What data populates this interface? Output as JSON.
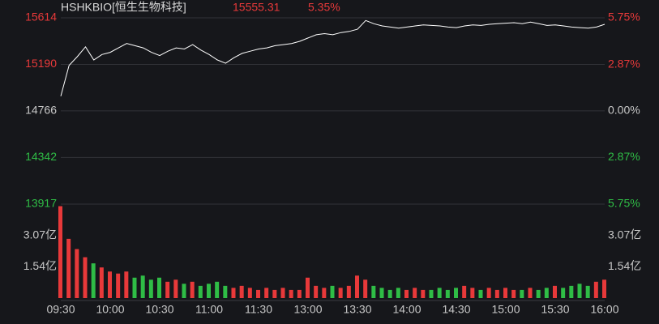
{
  "header": {
    "symbol": "HSHKBIO[恒生生物科技]",
    "price": "15555.31",
    "change": "5.35%"
  },
  "chart_data": [
    {
      "type": "line",
      "color": "#ffffff",
      "up_color": "#e8393a",
      "down_color": "#2fbd46",
      "flat_color": "#c8c8c8",
      "x": [
        "09:30",
        "09:35",
        "09:40",
        "09:45",
        "09:50",
        "09:55",
        "10:00",
        "10:05",
        "10:10",
        "10:15",
        "10:20",
        "10:25",
        "10:30",
        "10:35",
        "10:40",
        "10:45",
        "10:50",
        "10:55",
        "11:00",
        "11:05",
        "11:10",
        "11:15",
        "11:20",
        "11:25",
        "11:30",
        "11:35",
        "11:40",
        "11:45",
        "11:50",
        "11:55",
        "13:00",
        "13:05",
        "13:10",
        "13:15",
        "13:20",
        "13:25",
        "13:30",
        "13:35",
        "13:40",
        "13:45",
        "13:50",
        "13:55",
        "14:00",
        "14:05",
        "14:10",
        "14:15",
        "14:20",
        "14:25",
        "14:30",
        "14:35",
        "14:40",
        "14:45",
        "14:50",
        "14:55",
        "15:00",
        "15:05",
        "15:10",
        "15:15",
        "15:20",
        "15:25",
        "15:30",
        "15:35",
        "15:40",
        "15:45",
        "15:50",
        "15:55",
        "16:00"
      ],
      "values": [
        14900,
        15180,
        15260,
        15350,
        15230,
        15280,
        15300,
        15340,
        15380,
        15360,
        15340,
        15300,
        15270,
        15310,
        15340,
        15330,
        15370,
        15320,
        15280,
        15230,
        15200,
        15250,
        15290,
        15310,
        15330,
        15340,
        15360,
        15370,
        15380,
        15400,
        15430,
        15460,
        15470,
        15460,
        15480,
        15490,
        15510,
        15590,
        15560,
        15540,
        15530,
        15520,
        15530,
        15540,
        15550,
        15545,
        15540,
        15530,
        15525,
        15540,
        15550,
        15545,
        15555,
        15560,
        15565,
        15570,
        15560,
        15575,
        15560,
        15545,
        15550,
        15540,
        15530,
        15525,
        15520,
        15530,
        15555
      ],
      "ylim": [
        13917,
        15614
      ],
      "yticks": [
        15614,
        15190,
        14766,
        14342,
        13917
      ],
      "y2lim": [
        -5.75,
        5.75
      ],
      "y2ticks": [
        {
          "value": 5.75,
          "label": "5.75%"
        },
        {
          "value": 2.87,
          "label": "2.87%"
        },
        {
          "value": 0,
          "label": "0.00%"
        },
        {
          "value": -2.87,
          "label": "2.87%"
        },
        {
          "value": -5.75,
          "label": "5.75%"
        }
      ]
    },
    {
      "type": "bar",
      "up_color": "#e8393a",
      "down_color": "#2fbd46",
      "values": [
        4.5,
        2.9,
        2.4,
        2.0,
        1.7,
        1.5,
        1.3,
        1.2,
        1.3,
        1.0,
        1.1,
        0.9,
        1.0,
        0.8,
        0.9,
        0.7,
        0.8,
        0.6,
        0.7,
        0.8,
        0.6,
        0.5,
        0.6,
        0.5,
        0.4,
        0.5,
        0.4,
        0.5,
        0.4,
        0.4,
        1.0,
        0.6,
        0.5,
        0.6,
        0.5,
        0.6,
        1.1,
        0.9,
        0.6,
        0.5,
        0.4,
        0.5,
        0.4,
        0.5,
        0.4,
        0.4,
        0.5,
        0.4,
        0.5,
        0.6,
        0.5,
        0.4,
        0.5,
        0.4,
        0.5,
        0.4,
        0.4,
        0.5,
        0.4,
        0.5,
        0.6,
        0.5,
        0.6,
        0.7,
        0.6,
        0.8,
        0.9
      ],
      "ylim": [
        0,
        4.6
      ],
      "yticks": [
        {
          "value": 3.07,
          "label": "3.07亿"
        },
        {
          "value": 1.54,
          "label": "1.54亿"
        }
      ],
      "xticks": [
        "09:30",
        "10:00",
        "10:30",
        "11:00",
        "11:30",
        "13:00",
        "13:30",
        "14:00",
        "14:30",
        "15:00",
        "15:30",
        "16:00"
      ]
    }
  ]
}
